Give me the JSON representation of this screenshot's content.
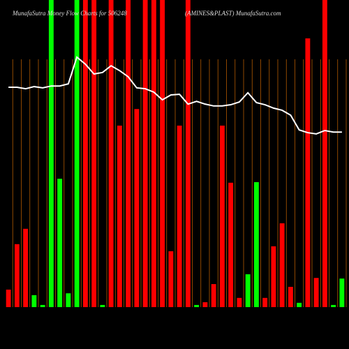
{
  "chart_data": {
    "type": "bar",
    "title": "MunafaSutra Money Flow Charts for 506248",
    "subtitle": "(AMINES&PLAST) MunafaSutra.com",
    "categories": [
      null,
      null,
      null,
      null,
      null,
      null,
      null,
      null,
      null,
      null,
      null,
      null,
      null,
      null,
      null,
      null,
      null,
      null,
      null,
      null,
      null,
      null,
      null,
      null,
      null,
      null,
      null,
      null,
      null,
      null,
      null,
      null,
      null,
      null,
      null,
      null,
      null,
      null,
      null,
      null
    ],
    "series": [
      {
        "values": [
          5.7,
          20.5,
          25.5,
          3.9,
          0.7,
          100,
          41.8,
          4.5,
          100,
          100,
          100,
          0.7,
          100,
          59.1,
          100,
          64.5,
          100,
          100,
          100,
          18.2,
          59.1,
          100,
          0.7,
          1.6,
          7.5,
          59.1,
          40.5,
          3.0,
          10.7,
          40.7,
          3.0,
          19.8,
          27.3,
          6.6,
          1.4,
          87.5,
          9.5,
          100,
          0.7,
          9.3
        ],
        "colors": [
          "#ff0000",
          "#ff0000",
          "#ff0000",
          "#00ff00",
          "#00ff00",
          "#00ff00",
          "#00ff00",
          "#00ff00",
          "#00ff00",
          "#ff0000",
          "#ff0000",
          "#00ff00",
          "#ff0000",
          "#ff0000",
          "#ff0000",
          "#ff0000",
          "#ff0000",
          "#ff0000",
          "#ff0000",
          "#ff0000",
          "#ff0000",
          "#ff0000",
          "#00ff00",
          "#ff0000",
          "#ff0000",
          "#ff0000",
          "#ff0000",
          "#ff0000",
          "#00ff00",
          "#00ff00",
          "#ff0000",
          "#ff0000",
          "#ff0000",
          "#ff0000",
          "#00ff00",
          "#ff0000",
          "#ff0000",
          "#ff0000",
          "#00ff00",
          "#00ff00"
        ]
      },
      {
        "type": "line",
        "color": "#ffffff",
        "axis": "y2",
        "values": [
          71.6,
          71.6,
          71.1,
          71.8,
          71.4,
          72.0,
          72.0,
          72.7,
          81.4,
          79.1,
          75.9,
          76.4,
          78.6,
          77.0,
          75.0,
          71.4,
          71.1,
          70.0,
          67.5,
          69.1,
          69.3,
          66.1,
          67.0,
          66.1,
          65.5,
          65.5,
          65.9,
          66.8,
          69.8,
          66.6,
          65.9,
          64.8,
          64.1,
          62.5,
          57.7,
          56.8,
          56.4,
          57.5,
          57.0,
          57.0
        ]
      }
    ],
    "ylim": [
      0,
      100
    ],
    "y2lim": [
      0,
      100
    ],
    "grid_color": "#b35900"
  }
}
